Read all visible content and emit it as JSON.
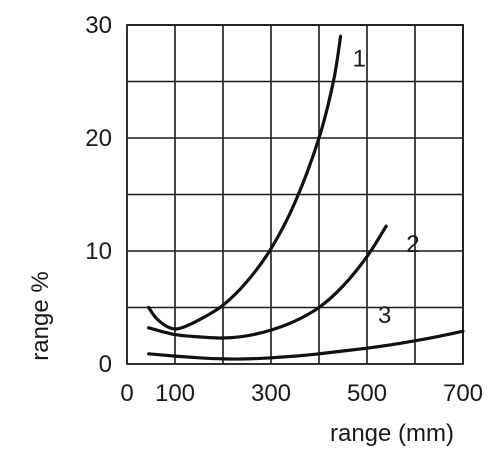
{
  "chart_data": {
    "type": "line",
    "title": "",
    "xlabel": "range (mm)",
    "ylabel": "range %",
    "xlim": [
      0,
      700
    ],
    "ylim": [
      0,
      30
    ],
    "x_gridlines": [
      100,
      200,
      300,
      400,
      500,
      600,
      700
    ],
    "y_gridlines": [
      5,
      10,
      15,
      20,
      25,
      30
    ],
    "x_tick_labels": [
      {
        "value": 0,
        "label": "0"
      },
      {
        "value": 100,
        "label": "100"
      },
      {
        "value": 300,
        "label": "300"
      },
      {
        "value": 500,
        "label": "500"
      },
      {
        "value": 700,
        "label": "700"
      }
    ],
    "y_tick_labels": [
      {
        "value": 0,
        "label": "0"
      },
      {
        "value": 10,
        "label": "10"
      },
      {
        "value": 20,
        "label": "20"
      },
      {
        "value": 30,
        "label": "30"
      }
    ],
    "grid": true,
    "line_color": "#111111",
    "series": [
      {
        "name": "1",
        "x": [
          45,
          60,
          80,
          100,
          120,
          150,
          200,
          250,
          300,
          350,
          400,
          430,
          445
        ],
        "y": [
          5.0,
          4.1,
          3.4,
          3.1,
          3.3,
          3.9,
          5.2,
          7.3,
          10.2,
          14.3,
          20.0,
          25.0,
          29.0
        ]
      },
      {
        "name": "2",
        "x": [
          45,
          100,
          150,
          200,
          250,
          300,
          350,
          400,
          450,
          500,
          540
        ],
        "y": [
          3.2,
          2.6,
          2.4,
          2.3,
          2.5,
          3.0,
          3.8,
          5.0,
          6.9,
          9.5,
          12.2
        ]
      },
      {
        "name": "3",
        "x": [
          45,
          100,
          150,
          200,
          250,
          300,
          350,
          400,
          450,
          500,
          550,
          600,
          650,
          700
        ],
        "y": [
          0.9,
          0.7,
          0.55,
          0.45,
          0.45,
          0.55,
          0.7,
          0.9,
          1.15,
          1.4,
          1.7,
          2.05,
          2.45,
          2.9
        ]
      }
    ]
  }
}
